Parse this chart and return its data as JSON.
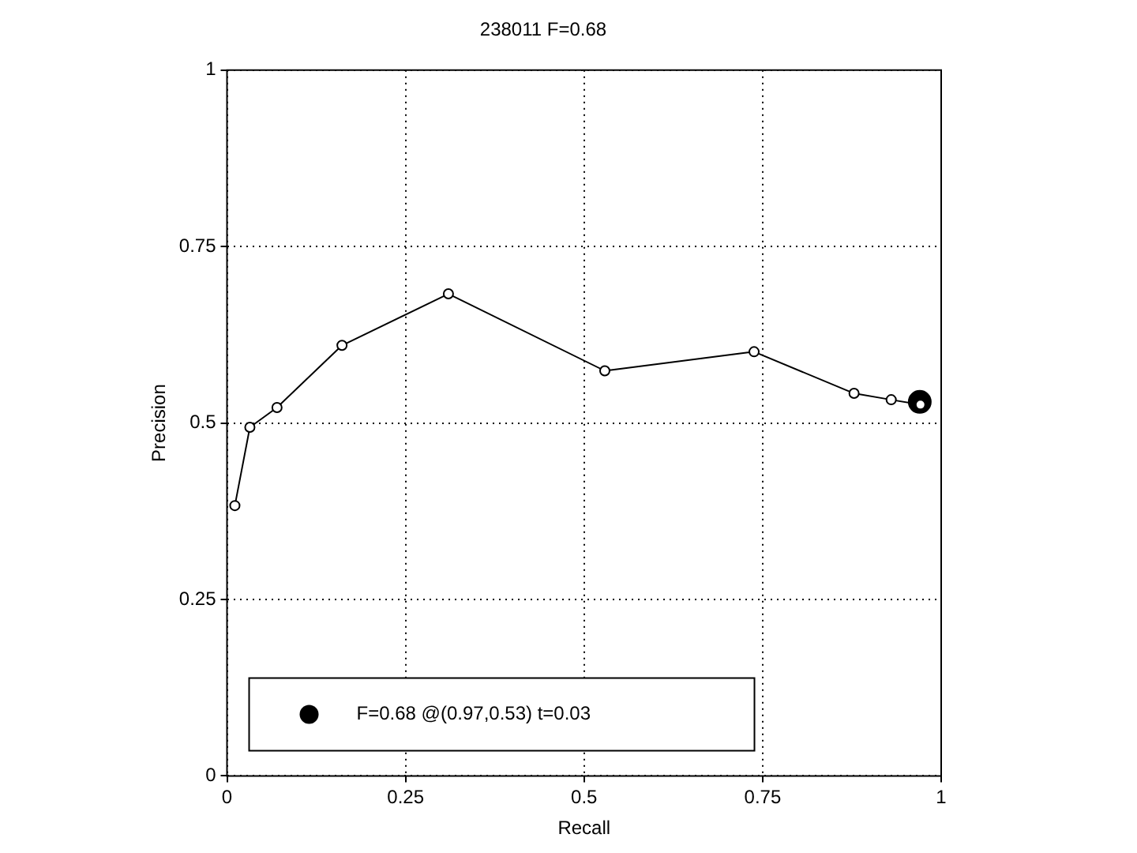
{
  "chart_data": {
    "type": "line",
    "title": "238011 F=0.68",
    "xlabel": "Recall",
    "ylabel": "Precision",
    "xlim": [
      0,
      1
    ],
    "xticks": [
      0,
      0.25,
      0.5,
      0.75,
      1
    ],
    "ylim": [
      0,
      1
    ],
    "yticks": [
      0,
      0.25,
      0.5,
      0.75,
      1
    ],
    "grid": true,
    "legend": "bottom",
    "marker": "circle",
    "line_style": "solid",
    "series": [
      {
        "color": "#000000",
        "x": [
          0.011,
          0.032,
          0.07,
          0.161,
          0.31,
          0.529,
          0.738,
          0.878,
          0.93,
          0.971
        ],
        "values": [
          0.383,
          0.494,
          0.522,
          0.61,
          0.683,
          0.574,
          0.601,
          0.542,
          0.533,
          0.526
        ]
      },
      {
        "type": "scatter",
        "name": "F=0.68 @(0.97,0.53) t=0.03",
        "color": "#000000",
        "x": [
          0.97
        ],
        "values": [
          0.53
        ]
      }
    ]
  }
}
